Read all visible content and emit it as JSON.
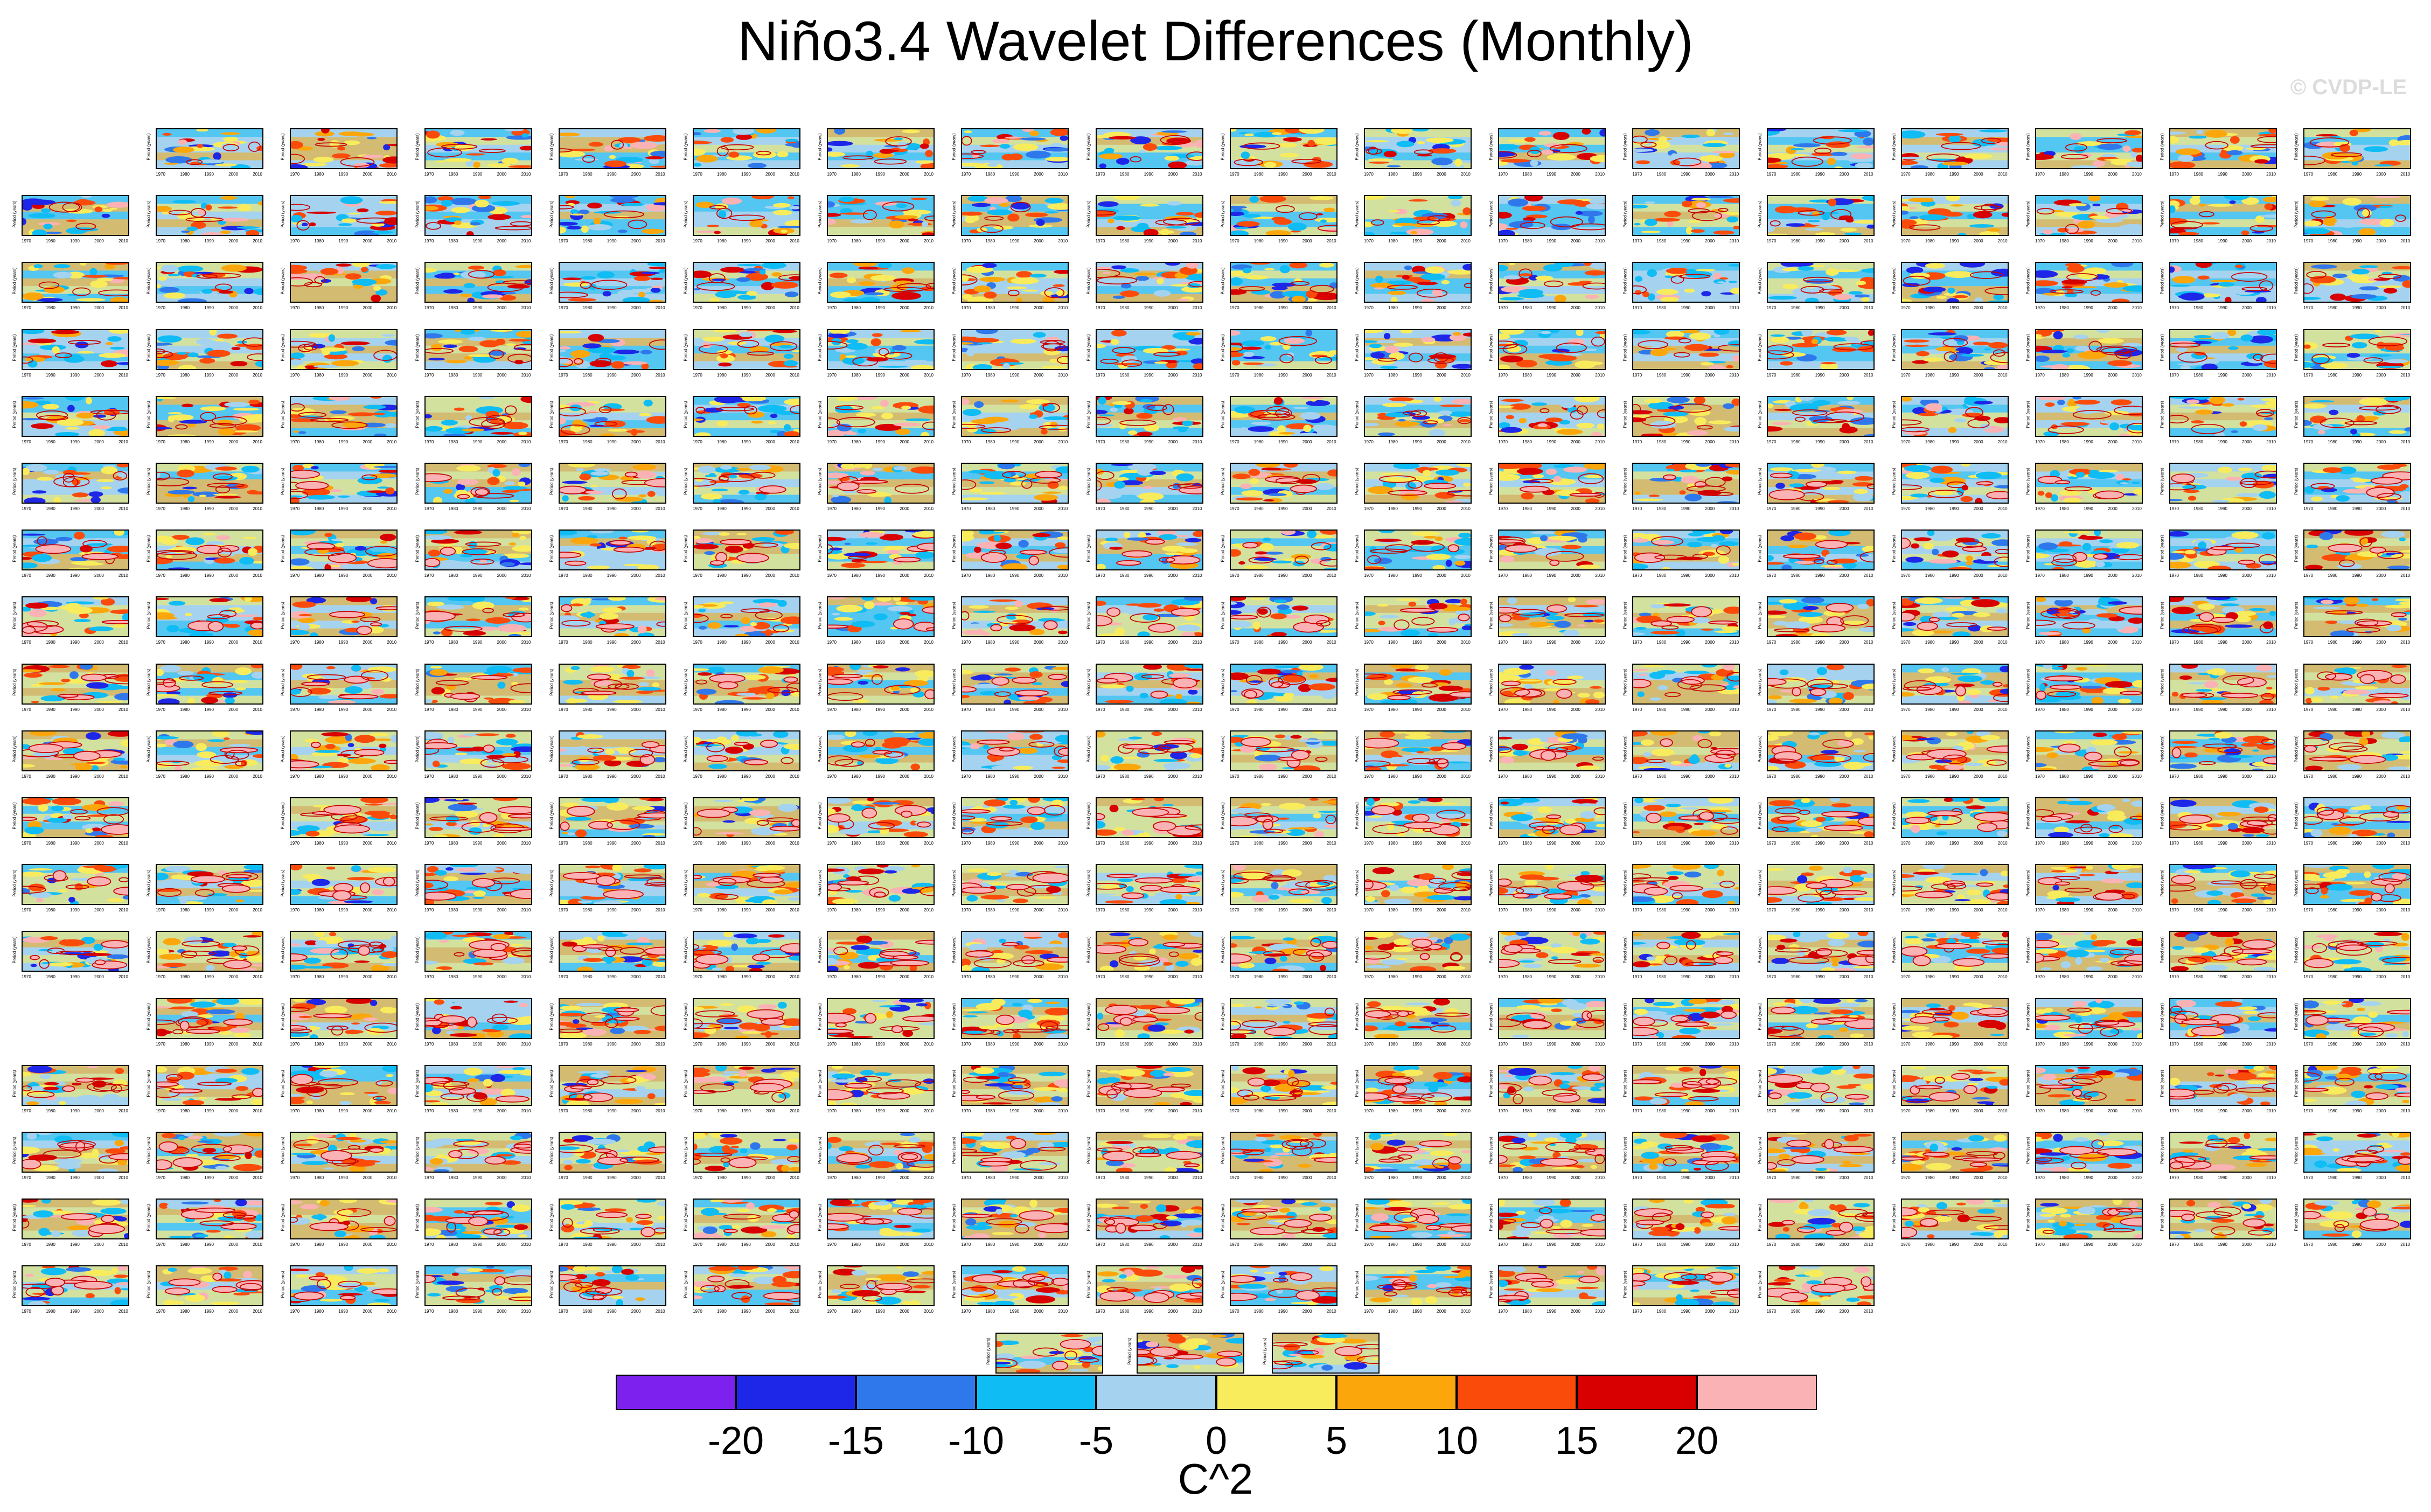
{
  "title": "Niño3.4 Wavelet Differences (Monthly)",
  "watermark": "© CVDP-LE",
  "chart_data": {
    "type": "heatmap",
    "title": "Niño3.4 Wavelet Differences (Monthly)",
    "panel_count": 320,
    "panel_ylabel": "Period (years)",
    "panel_xticks": [
      "1970",
      "1980",
      "1990",
      "2000",
      "2010"
    ],
    "colorbar": {
      "units": "C^2",
      "ticks": [
        "-20",
        "-15",
        "-10",
        "-5",
        "0",
        "5",
        "10",
        "15",
        "20"
      ],
      "colors": [
        "#7d22ee",
        "#1e26e8",
        "#2f78ec",
        "#10bcf4",
        "#a5d3ef",
        "#f9ec5c",
        "#fba70b",
        "#fb4b0b",
        "#d80000",
        "#fbb2b4"
      ]
    }
  },
  "colors": {
    "contour": "#c80000"
  }
}
